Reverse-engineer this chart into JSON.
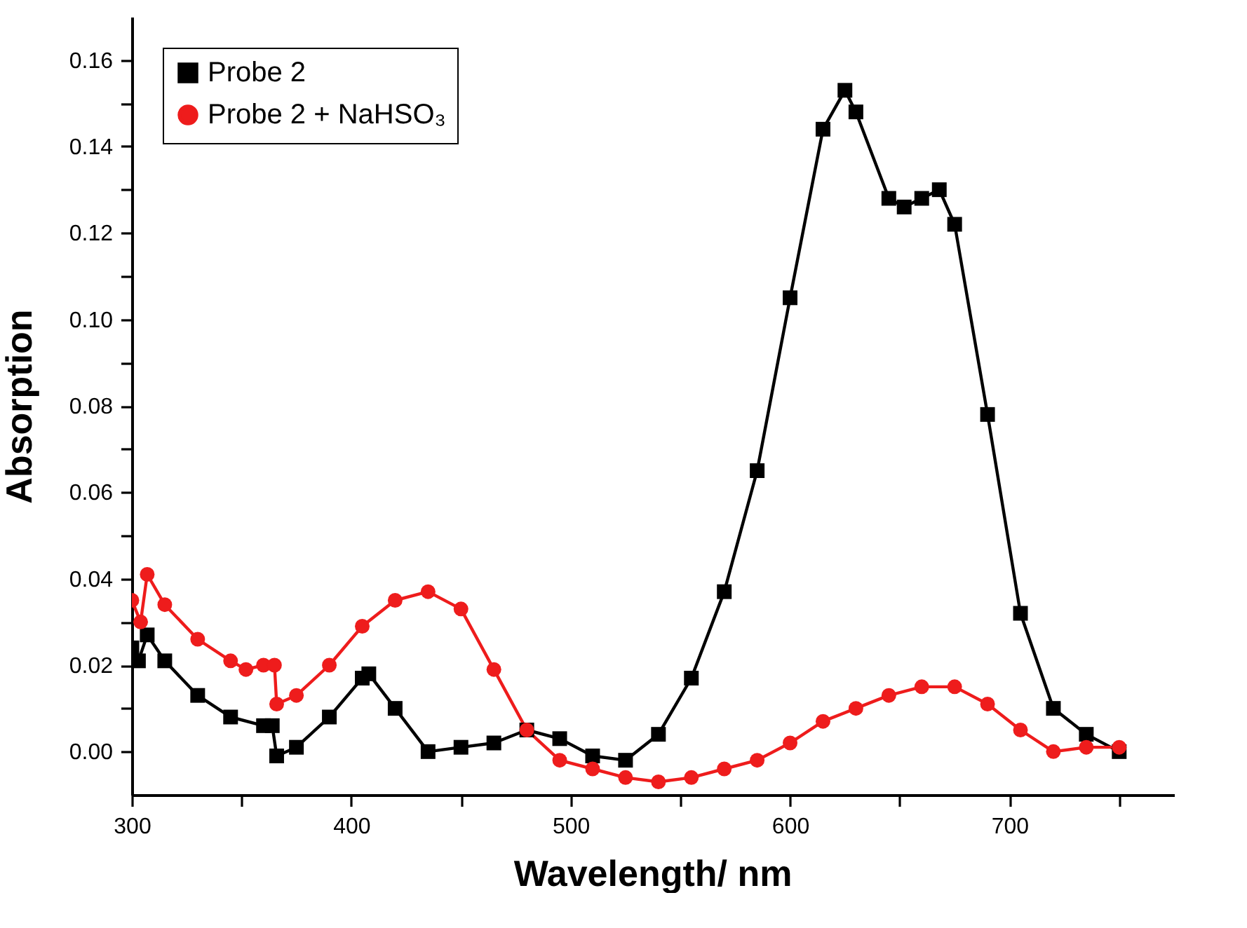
{
  "chart_data": {
    "type": "line",
    "xlabel": "Wavelength/ nm",
    "ylabel": "Absorption",
    "xlim": [
      300,
      775
    ],
    "ylim": [
      -0.01,
      0.17
    ],
    "xticks": [
      300,
      {
        "value": 350,
        "label": null
      },
      400,
      {
        "value": 450,
        "label": null
      },
      500,
      {
        "value": 550,
        "label": null
      },
      600,
      {
        "value": 650,
        "label": null
      },
      700,
      {
        "value": 750,
        "label": null
      }
    ],
    "yticks": [
      {
        "value": 0,
        "label": "0.00"
      },
      {
        "value": 0.01,
        "label": null
      },
      0.02,
      {
        "value": 0.03,
        "label": null
      },
      0.04,
      {
        "value": 0.05,
        "label": null
      },
      0.06,
      {
        "value": 0.07,
        "label": null
      },
      0.08,
      {
        "value": 0.09,
        "label": null
      },
      {
        "value": 0.1,
        "label": "0.10"
      },
      {
        "value": 0.11,
        "label": null
      },
      0.12,
      {
        "value": 0.13,
        "label": null
      },
      0.14,
      {
        "value": 0.15,
        "label": null
      },
      0.16
    ],
    "grid": false,
    "legend": "top left",
    "line_style": "solid",
    "series": [
      {
        "name": "Probe 2",
        "color": "#000000",
        "marker": "square",
        "x": [
          300,
          303,
          307,
          315,
          330,
          345,
          360,
          364,
          366,
          375,
          390,
          405,
          408,
          420,
          435,
          450,
          465,
          480,
          495,
          510,
          525,
          540,
          555,
          570,
          585,
          600,
          615,
          625,
          630,
          645,
          652,
          660,
          668,
          675,
          690,
          705,
          720,
          735,
          750
        ],
        "values": [
          0.024,
          0.021,
          0.027,
          0.021,
          0.013,
          0.008,
          0.006,
          0.006,
          -0.001,
          0.001,
          0.008,
          0.017,
          0.018,
          0.01,
          0.0,
          0.001,
          0.002,
          0.005,
          0.003,
          -0.001,
          -0.002,
          0.004,
          0.017,
          0.037,
          0.065,
          0.105,
          0.144,
          0.153,
          0.148,
          0.128,
          0.126,
          0.128,
          0.13,
          0.122,
          0.078,
          0.032,
          0.01,
          0.004,
          0.0
        ]
      },
      {
        "name": "Probe 2 + NaHSO₃",
        "color": "#ee1c1c",
        "marker": "circle",
        "x": [
          300,
          304,
          307,
          315,
          330,
          345,
          352,
          360,
          365,
          366,
          375,
          390,
          405,
          420,
          435,
          450,
          465,
          480,
          495,
          510,
          525,
          540,
          555,
          570,
          585,
          600,
          615,
          630,
          645,
          660,
          675,
          690,
          705,
          720,
          735,
          750
        ],
        "values": [
          0.035,
          0.03,
          0.041,
          0.034,
          0.026,
          0.021,
          0.019,
          0.02,
          0.02,
          0.011,
          0.013,
          0.02,
          0.029,
          0.035,
          0.037,
          0.033,
          0.019,
          0.005,
          -0.002,
          -0.004,
          -0.006,
          -0.007,
          -0.006,
          -0.004,
          -0.002,
          0.002,
          0.007,
          0.01,
          0.013,
          0.015,
          0.015,
          0.011,
          0.005,
          0.0,
          0.001,
          0.001
        ]
      }
    ]
  }
}
